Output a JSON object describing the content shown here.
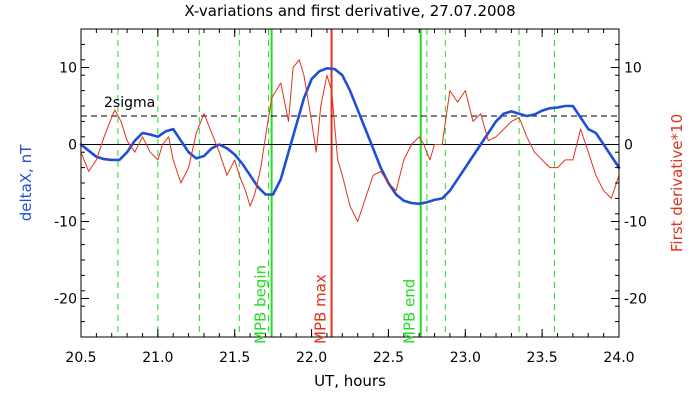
{
  "chart_data": {
    "type": "line",
    "title": "X-variations and first derivative, 27.07.2008",
    "xlabel": "UT, hours",
    "ylabel_left": "deltaX, nT",
    "ylabel_right": "First derivative*10",
    "xlim": [
      20.5,
      24.0
    ],
    "ylim": [
      -25,
      15
    ],
    "xticks": [
      "20.5",
      "21.0",
      "21.5",
      "22.0",
      "22.5",
      "23.0",
      "23.5",
      "24.0"
    ],
    "yticks": [
      "10",
      "0",
      "-10",
      "-20"
    ],
    "grid": false,
    "colors": {
      "deltaX": "#1f4fd6",
      "derivative": "#e0321c",
      "mpb_boundary": "#22dd22",
      "mpb_max": "#e0321c",
      "dashed_markers": "#22dd22"
    },
    "sigma_level": {
      "label": "2sigma",
      "value": 3.7
    },
    "zero_line": 0,
    "vertical_markers": [
      {
        "label": "MPB begin",
        "x": 21.74,
        "color": "#22dd22"
      },
      {
        "label": "MPB max",
        "x": 22.13,
        "color": "#e0321c"
      },
      {
        "label": "MPB end",
        "x": 22.71,
        "color": "#22dd22"
      }
    ],
    "dashed_verticals": [
      20.74,
      21.0,
      21.27,
      21.53,
      21.72,
      22.75,
      22.87,
      23.35,
      23.58
    ],
    "series": [
      {
        "key": "deltaX",
        "x": [
          20.5,
          20.55,
          20.6,
          20.65,
          20.7,
          20.75,
          20.8,
          20.85,
          20.9,
          20.95,
          21.0,
          21.05,
          21.1,
          21.15,
          21.2,
          21.25,
          21.3,
          21.35,
          21.4,
          21.45,
          21.5,
          21.55,
          21.6,
          21.65,
          21.7,
          21.75,
          21.8,
          21.85,
          21.9,
          21.95,
          22.0,
          22.05,
          22.1,
          22.15,
          22.2,
          22.25,
          22.3,
          22.35,
          22.4,
          22.45,
          22.5,
          22.55,
          22.6,
          22.65,
          22.7,
          22.75,
          22.8,
          22.85,
          22.9,
          22.95,
          23.0,
          23.05,
          23.1,
          23.15,
          23.2,
          23.25,
          23.3,
          23.35,
          23.4,
          23.45,
          23.5,
          23.55,
          23.6,
          23.65,
          23.7,
          23.75,
          23.8,
          23.85,
          23.9,
          23.95,
          24.0
        ],
        "y": [
          0,
          -0.8,
          -1.6,
          -1.9,
          -2,
          -2,
          -1,
          0.5,
          1.5,
          1.3,
          1,
          1.7,
          2,
          0.5,
          -1,
          -1.8,
          -1.5,
          -0.5,
          0,
          -0.5,
          -1.3,
          -2.5,
          -4,
          -5.5,
          -6.5,
          -6.5,
          -4.5,
          -1,
          2.5,
          6,
          8.5,
          9.5,
          9.9,
          9.8,
          9,
          7,
          4.5,
          2,
          -0.5,
          -3,
          -5,
          -6.5,
          -7.3,
          -7.6,
          -7.7,
          -7.5,
          -7.2,
          -7,
          -6,
          -4.5,
          -3,
          -1.5,
          0,
          1.5,
          3,
          4,
          4.3,
          4,
          3.7,
          3.9,
          4.4,
          4.7,
          4.8,
          5,
          5,
          3.5,
          2,
          1.5,
          0,
          -1.5,
          -3
        ]
      },
      {
        "key": "derivative",
        "x": [
          20.5,
          20.55,
          20.6,
          20.65,
          20.7,
          20.72,
          20.76,
          20.8,
          20.85,
          20.9,
          20.95,
          21.0,
          21.03,
          21.07,
          21.1,
          21.15,
          21.2,
          21.25,
          21.3,
          21.35,
          21.4,
          21.45,
          21.5,
          21.53,
          21.57,
          21.6,
          21.63,
          21.67,
          21.7,
          21.74,
          21.8,
          21.85,
          21.88,
          21.92,
          21.95,
          22.0,
          22.03,
          22.06,
          22.1,
          22.13,
          22.17,
          22.2,
          22.25,
          22.3,
          22.35,
          22.4,
          22.45,
          22.5,
          22.55,
          22.6,
          22.65,
          22.7,
          22.73,
          22.77,
          22.8,
          22.85,
          22.9,
          22.95,
          23.0,
          23.05,
          23.1,
          23.15,
          23.2,
          23.25,
          23.3,
          23.35,
          23.4,
          23.45,
          23.5,
          23.55,
          23.6,
          23.65,
          23.7,
          23.75,
          23.8,
          23.85,
          23.9,
          23.95,
          24.0
        ],
        "y": [
          -1,
          -3.5,
          -2,
          1,
          3.5,
          4.5,
          3,
          0.5,
          -1,
          1,
          -1,
          -2,
          0,
          1,
          -2,
          -5,
          -3,
          1.5,
          4,
          1.5,
          -1,
          -4,
          -2,
          -4,
          -6,
          -8,
          -6.5,
          -3,
          1,
          6,
          8,
          3,
          10,
          11,
          9,
          3,
          -1,
          5,
          9,
          7,
          -2,
          -4,
          -8,
          -10,
          -7,
          -4,
          -3.5,
          -5,
          -6,
          -2,
          0,
          1,
          0,
          -2,
          0,
          0,
          7,
          5.5,
          7,
          3,
          4,
          0.5,
          1,
          2,
          3,
          3.5,
          1,
          -1,
          -2,
          -3,
          -3,
          -2,
          -2,
          2,
          -1,
          -4,
          -6,
          -7,
          -4
        ]
      }
    ]
  }
}
